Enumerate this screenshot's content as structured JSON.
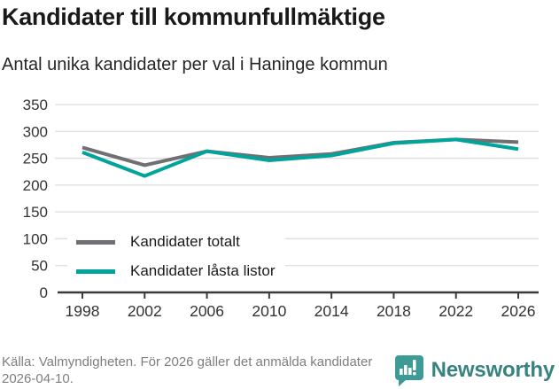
{
  "chart_data": {
    "type": "line",
    "title": "Kandidater till kommunfullmäktige",
    "subtitle": "Antal unika kandidater per val i Haninge kommun",
    "categories": [
      "1998",
      "2002",
      "2006",
      "2010",
      "2014",
      "2018",
      "2022",
      "2026"
    ],
    "series": [
      {
        "name": "Kandidater totalt",
        "color": "#707074",
        "values": [
          270,
          237,
          263,
          251,
          258,
          279,
          285,
          280
        ]
      },
      {
        "name": "Kandidater låsta listor",
        "color": "#00a49a",
        "values": [
          261,
          217,
          263,
          246,
          255,
          278,
          285,
          267
        ]
      }
    ],
    "ylim": [
      0,
      350
    ],
    "ytick_step": 50,
    "yticks": [
      0,
      50,
      100,
      150,
      200,
      250,
      300,
      350
    ],
    "grid": "horizontal",
    "legend_position": "inside-top-left",
    "axis_color": "#3a3a3a",
    "grid_color": "#dddddd",
    "tick_label_color": "#333333"
  },
  "footer": {
    "source": "Källa: Valmyndigheten. För 2026 gäller det anmälda kandidater 2026-04-10.",
    "brand_name": "Newsworthy",
    "brand_color": "#37837f",
    "brand_icon_color": "#3d9a94"
  }
}
